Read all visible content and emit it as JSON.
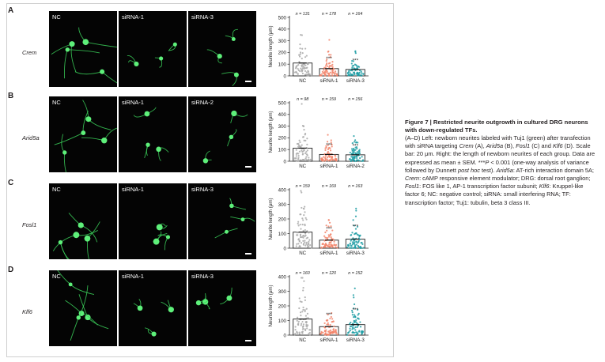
{
  "panels": [
    {
      "letter": "A",
      "gene": "Crem",
      "images": [
        "NC",
        "siRNA-1",
        "siRNA-3"
      ],
      "chart": {
        "ylabel": "Neurite length (μm)",
        "ylim": [
          0,
          500
        ],
        "yticks": [
          0,
          100,
          200,
          300,
          400,
          500
        ],
        "categories": [
          "NC",
          "siRNA-1",
          "siRNA-3"
        ],
        "n_labels": [
          "n = 131",
          "n = 178",
          "n = 164"
        ],
        "means": [
          110,
          62,
          55
        ],
        "significance": [
          "",
          "***",
          "***"
        ],
        "colors": [
          "#a9a9a9",
          "#f2856b",
          "#1f9ea5"
        ]
      }
    },
    {
      "letter": "B",
      "gene": "Arid5a",
      "images": [
        "NC",
        "siRNA-1",
        "siRNA-2"
      ],
      "chart": {
        "ylabel": "Neurite length (μm)",
        "ylim": [
          0,
          500
        ],
        "yticks": [
          0,
          100,
          200,
          300,
          400,
          500
        ],
        "categories": [
          "NC",
          "siRNA-1",
          "siRNA-2"
        ],
        "n_labels": [
          "n = 98",
          "n = 159",
          "n = 156"
        ],
        "means": [
          112,
          58,
          55
        ],
        "significance": [
          "",
          "***",
          "***"
        ],
        "colors": [
          "#a9a9a9",
          "#f2856b",
          "#1f9ea5"
        ]
      }
    },
    {
      "letter": "C",
      "gene": "Fosl1",
      "images": [
        "NC",
        "siRNA-1",
        "siRNA-3"
      ],
      "chart": {
        "ylabel": "Neurite length (μm)",
        "ylim": [
          0,
          400
        ],
        "yticks": [
          0,
          100,
          200,
          300,
          400
        ],
        "categories": [
          "NC",
          "siRNA-1",
          "siRNA-3"
        ],
        "n_labels": [
          "n = 159",
          "n = 169",
          "n = 163"
        ],
        "means": [
          110,
          55,
          62
        ],
        "significance": [
          "",
          "***",
          "***"
        ],
        "colors": [
          "#a9a9a9",
          "#f2856b",
          "#1f9ea5"
        ]
      }
    },
    {
      "letter": "D",
      "gene": "Klf6",
      "images": [
        "NC",
        "siRNA-1",
        "siRNA-3"
      ],
      "chart": {
        "ylabel": "Neurite length (μm)",
        "ylim": [
          0,
          400
        ],
        "yticks": [
          0,
          100,
          200,
          300,
          400
        ],
        "categories": [
          "NC",
          "siRNA-1",
          "siRNA-3"
        ],
        "n_labels": [
          "n = 160",
          "n = 120",
          "n = 152"
        ],
        "means": [
          110,
          58,
          72
        ],
        "significance": [
          "",
          "***",
          "***"
        ],
        "colors": [
          "#a9a9a9",
          "#f2856b",
          "#1f9ea5"
        ]
      }
    }
  ],
  "caption": {
    "title": "Figure 7  |  Restricted neurite outgrowth in cultured DRG neurons with down-regulated TFs.",
    "s1": "(A–D) Left: newborn neurites labeled with Tuj1 (green) after transfection with siRNA targeting ",
    "g1": "Crem",
    "s2": " (A), ",
    "g2": "Arid5a",
    "s3": " (B), ",
    "g3": "Fosl1",
    "s4": " (C) and ",
    "g4": "Klf6",
    "s5": " (D). Scale bar: 20 μm. Right: the length of newborn neurites of each group. Data are expressed as mean ± SEM. ***",
    "p": "P",
    "s6": " < 0.001 (one-way analysis of variance followed by Dunnett ",
    "posthoc": "post hoc",
    "s7": " test). ",
    "g5": "Arid5a",
    "s8": ": AT-rich interaction domain 5A; ",
    "g6": "Crem",
    "s9": ": cAMP responsive element modulator; DRG: dorsal root ganglion; ",
    "g7": "Fosl1",
    "s10": ": FOS like 1, AP-1 transcription factor subunit; ",
    "g8": "Klf6",
    "s11": ": Kruppel-like factor 6; NC: negative control; siRNA: small interfering RNA; TF: transcription factor; Tuj1: tubulin, beta 3 class III."
  }
}
